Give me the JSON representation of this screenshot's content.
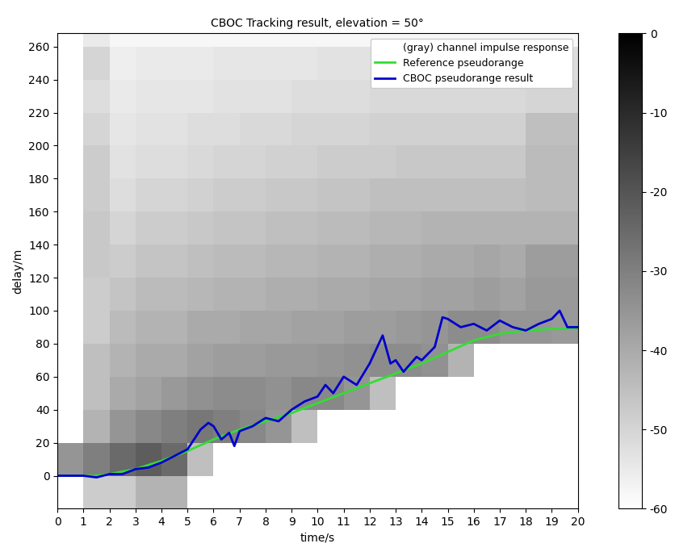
{
  "chart_data": {
    "type": "heatmap",
    "title": "CBOC Tracking result, elevation = 50°",
    "x_label": "time/s",
    "y_label": "delay/m",
    "xlim": [
      0,
      20
    ],
    "ylim": [
      -20,
      268
    ],
    "xticks": [
      0,
      1,
      2,
      3,
      4,
      5,
      6,
      7,
      8,
      9,
      10,
      11,
      12,
      13,
      14,
      15,
      16,
      17,
      18,
      19,
      20
    ],
    "yticks": [
      0,
      20,
      40,
      60,
      80,
      100,
      120,
      140,
      160,
      180,
      200,
      220,
      240,
      260
    ],
    "legend": "upper right",
    "heatmap": {
      "name": "(gray) channel impulse response",
      "x_edges": [
        0,
        1,
        2,
        3,
        4,
        5,
        6,
        7,
        8,
        9,
        10,
        11,
        12,
        13,
        14,
        15,
        16,
        17,
        18,
        19,
        20
      ],
      "y_edges": [
        -20,
        0,
        20,
        40,
        60,
        80,
        100,
        120,
        140,
        160,
        180,
        200,
        220,
        240,
        260,
        280
      ],
      "cells": [
        [
          -60,
          -48,
          -48,
          -42,
          -42,
          -60,
          -60,
          -60,
          -60,
          -60,
          -60,
          -60,
          -60,
          -60,
          -60,
          -60,
          -60,
          -60,
          -60,
          -60
        ],
        [
          -35,
          -30,
          -25,
          -22,
          -25,
          -45,
          -60,
          -60,
          -60,
          -60,
          -60,
          -60,
          -60,
          -60,
          -60,
          -60,
          -60,
          -60,
          -60,
          -60
        ],
        [
          -60,
          -42,
          -35,
          -32,
          -30,
          -28,
          -30,
          -32,
          -35,
          -45,
          -60,
          -60,
          -60,
          -60,
          -60,
          -60,
          -60,
          -60,
          -60,
          -60
        ],
        [
          -60,
          -45,
          -40,
          -38,
          -36,
          -34,
          -33,
          -33,
          -34,
          -32,
          -32,
          -35,
          -45,
          -60,
          -60,
          -60,
          -60,
          -60,
          -60,
          -60
        ],
        [
          -60,
          -45,
          -42,
          -40,
          -40,
          -38,
          -37,
          -37,
          -36,
          -36,
          -35,
          -34,
          -33,
          -33,
          -34,
          -42,
          -60,
          -60,
          -60,
          -60
        ],
        [
          -60,
          -48,
          -44,
          -42,
          -42,
          -40,
          -40,
          -39,
          -39,
          -38,
          -38,
          -37,
          -37,
          -36,
          -35,
          -33,
          -33,
          -35,
          -35,
          -36
        ],
        [
          -60,
          -48,
          -46,
          -44,
          -44,
          -43,
          -42,
          -42,
          -41,
          -41,
          -40,
          -40,
          -39,
          -39,
          -38,
          -38,
          -37,
          -38,
          -36,
          -36
        ],
        [
          -60,
          -47,
          -48,
          -46,
          -46,
          -45,
          -44,
          -44,
          -43,
          -43,
          -42,
          -42,
          -41,
          -41,
          -40,
          -40,
          -39,
          -40,
          -37,
          -37
        ],
        [
          -60,
          -47,
          -50,
          -48,
          -48,
          -47,
          -46,
          -46,
          -45,
          -45,
          -44,
          -44,
          -43,
          -43,
          -42,
          -42,
          -42,
          -42,
          -42,
          -42
        ],
        [
          -60,
          -48,
          -52,
          -50,
          -50,
          -49,
          -48,
          -48,
          -47,
          -47,
          -46,
          -46,
          -45,
          -45,
          -45,
          -45,
          -45,
          -45,
          -44,
          -44
        ],
        [
          -60,
          -48,
          -53,
          -52,
          -52,
          -51,
          -50,
          -50,
          -49,
          -49,
          -48,
          -48,
          -48,
          -47,
          -47,
          -47,
          -47,
          -47,
          -44,
          -44
        ],
        [
          -60,
          -50,
          -54,
          -53,
          -53,
          -52,
          -52,
          -51,
          -51,
          -50,
          -50,
          -50,
          -49,
          -49,
          -49,
          -49,
          -49,
          -49,
          -45,
          -45
        ],
        [
          -60,
          -52,
          -55,
          -54,
          -54,
          -54,
          -53,
          -53,
          -53,
          -52,
          -52,
          -52,
          -51,
          -51,
          -51,
          -51,
          -51,
          -51,
          -50,
          -50
        ],
        [
          -60,
          -50,
          -56,
          -55,
          -55,
          -55,
          -54,
          -54,
          -54,
          -54,
          -53,
          -53,
          -53,
          -53,
          -53,
          -53,
          -53,
          -53,
          -52,
          -52
        ],
        [
          -60,
          -55,
          -58,
          -58,
          -58,
          -58,
          -58,
          -58,
          -58,
          -58,
          -58,
          -58,
          -58,
          -58,
          -58,
          -58,
          -58,
          -58,
          -58,
          -58
        ]
      ],
      "color_range": [
        -60,
        0
      ],
      "color_ticks": [
        0,
        -10,
        -20,
        -30,
        -40,
        -50,
        -60
      ]
    },
    "series": [
      {
        "name": "Reference pseudorange",
        "color": "#33dd33",
        "x": [
          0,
          1,
          1.5,
          2,
          3,
          4,
          5,
          6,
          7,
          8,
          9,
          10,
          11,
          12,
          13,
          14,
          15,
          16,
          17,
          18,
          19,
          20
        ],
        "values": [
          0,
          0,
          0,
          1,
          4,
          9,
          15,
          22,
          28,
          33,
          38,
          44,
          50,
          56,
          62,
          68,
          75,
          82,
          86,
          88,
          89,
          89
        ]
      },
      {
        "name": "CBOC pseudorange result",
        "color": "#0000cc",
        "x": [
          0,
          1,
          1.5,
          2,
          2.5,
          3,
          3.5,
          4,
          4.5,
          5,
          5.5,
          5.8,
          6,
          6.3,
          6.6,
          6.8,
          7,
          7.5,
          8,
          8.5,
          9,
          9.5,
          10,
          10.3,
          10.6,
          11,
          11.5,
          12,
          12.5,
          12.8,
          13,
          13.3,
          13.8,
          14,
          14.5,
          14.8,
          15,
          15.5,
          16,
          16.5,
          17,
          17.5,
          18,
          18.5,
          19,
          19.3,
          19.6,
          20
        ],
        "values": [
          0,
          0,
          -1,
          1,
          1,
          4,
          5,
          8,
          12,
          16,
          28,
          32,
          30,
          22,
          26,
          18,
          27,
          30,
          35,
          33,
          40,
          45,
          48,
          55,
          50,
          60,
          55,
          68,
          85,
          68,
          70,
          63,
          72,
          70,
          78,
          96,
          95,
          90,
          92,
          88,
          94,
          90,
          88,
          92,
          95,
          100,
          90,
          90
        ]
      }
    ]
  }
}
